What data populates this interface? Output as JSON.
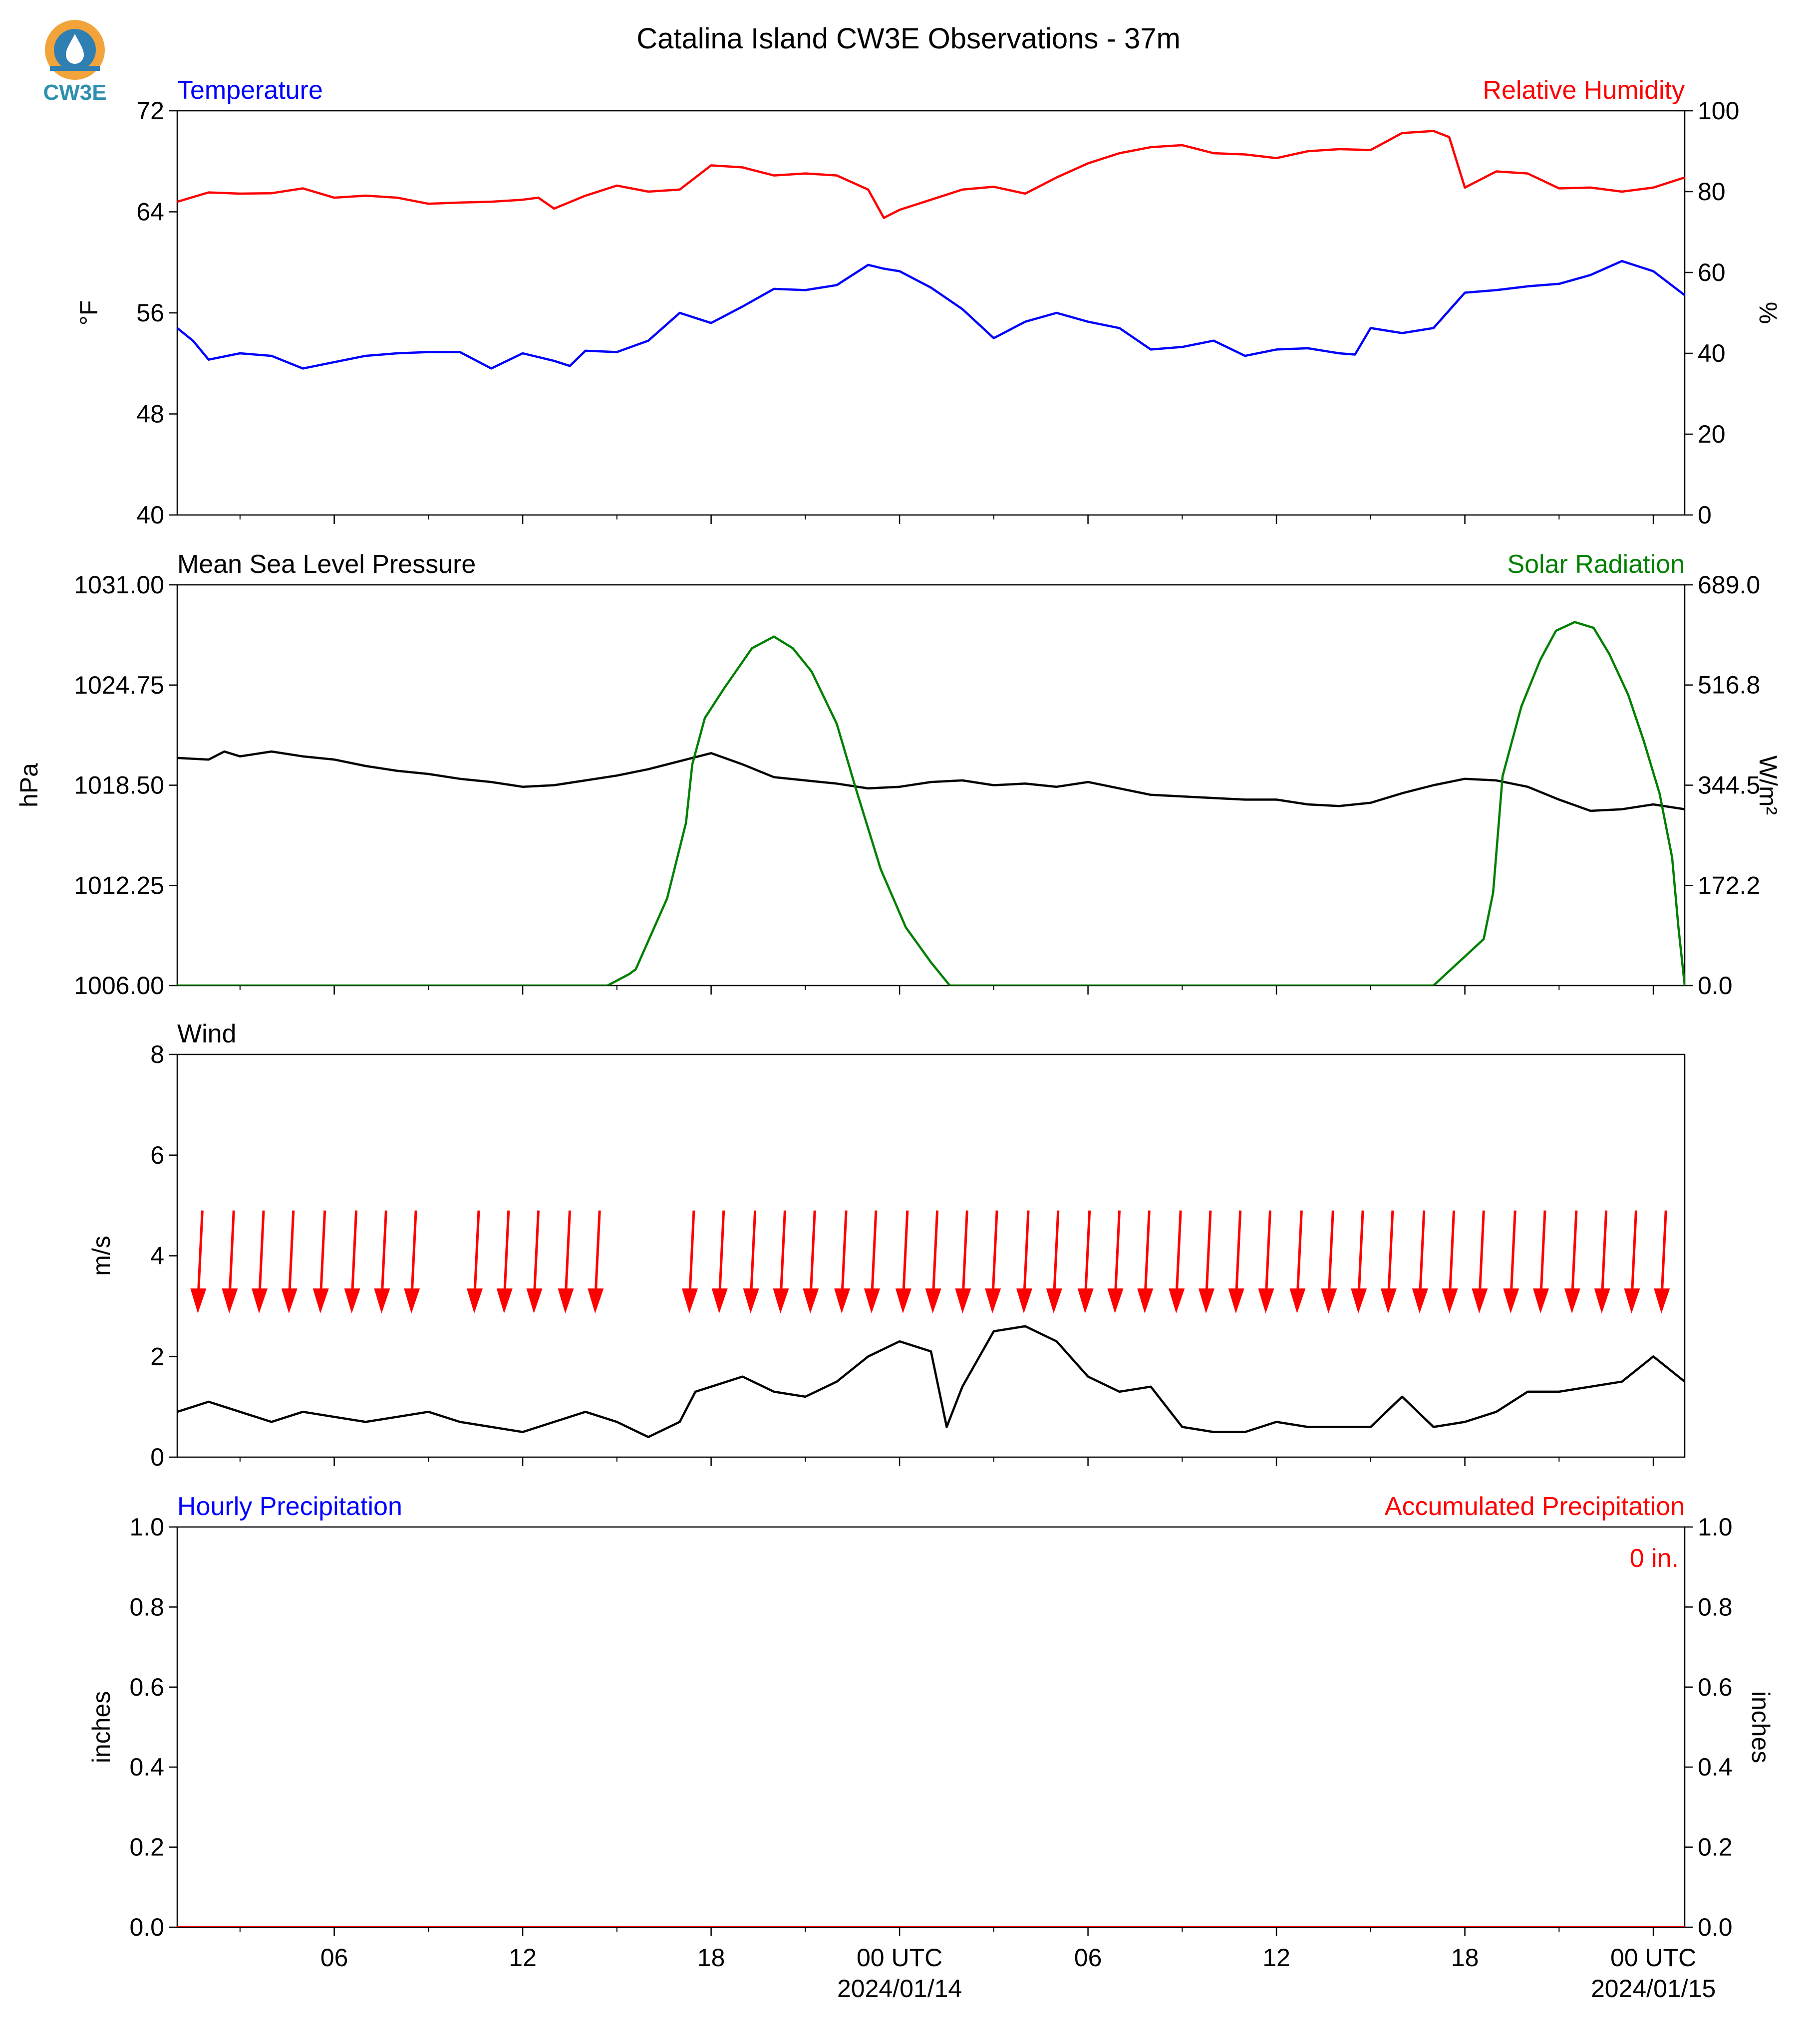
{
  "title": "Catalina Island CW3E Observations - 37m",
  "logo": {
    "text": "CW3E",
    "colors": {
      "outer": "#f2a33a",
      "inner": "#2f7fb2",
      "text": "#2f8fb0"
    }
  },
  "colors": {
    "blue": "#0000ff",
    "red": "#ff0000",
    "green": "#008000",
    "black": "#000000"
  },
  "x_axis": {
    "range_hours": [
      -5.0,
      43.0
    ],
    "ticks": [
      {
        "h": 0,
        "label": "06"
      },
      {
        "h": 6,
        "label": "12"
      },
      {
        "h": 12,
        "label": "18"
      },
      {
        "h": 18,
        "label": "00 UTC",
        "sub": "2024/01/14"
      },
      {
        "h": 24,
        "label": "06"
      },
      {
        "h": 30,
        "label": "12"
      },
      {
        "h": 36,
        "label": "18"
      },
      {
        "h": 42,
        "label": "00 UTC",
        "sub": "2024/01/15"
      }
    ],
    "minor_ticks": [
      -3,
      3,
      9,
      15,
      21,
      27,
      33,
      39
    ]
  },
  "chart_data": [
    {
      "type": "line",
      "panel": "temperature_humidity",
      "left_title": "Temperature",
      "right_title": "Relative Humidity",
      "ylabel_left": "°F",
      "ylabel_right": "%",
      "ylim_left": [
        40,
        72
      ],
      "yticks_left": [
        40,
        48,
        56,
        64,
        72
      ],
      "ylim_right": [
        0,
        100
      ],
      "yticks_right": [
        0,
        20,
        40,
        60,
        80,
        100
      ],
      "series": [
        {
          "axis": "left",
          "color": "#0000ff",
          "x": [
            -5.0,
            -4.5,
            -4.0,
            -3.0,
            -2.0,
            -1.0,
            0.0,
            1.0,
            2.0,
            3.0,
            4.0,
            5.0,
            6.0,
            7.0,
            7.5,
            8.0,
            9.0,
            10.0,
            11.0,
            12.0,
            13.0,
            14.0,
            15.0,
            16.0,
            17.0,
            17.5,
            18.0,
            19.0,
            20.0,
            21.0,
            22.0,
            23.0,
            24.0,
            25.0,
            26.0,
            27.0,
            28.0,
            29.0,
            30.0,
            31.0,
            32.0,
            32.5,
            33.0,
            34.0,
            35.0,
            36.0,
            37.0,
            38.0,
            39.0,
            40.0,
            41.0,
            42.0,
            43.0
          ],
          "y": [
            54.8,
            53.8,
            52.3,
            52.8,
            52.6,
            51.6,
            52.1,
            52.6,
            52.8,
            52.9,
            52.9,
            51.6,
            52.8,
            52.2,
            51.8,
            53.0,
            52.9,
            53.8,
            56.0,
            55.2,
            56.5,
            57.9,
            57.8,
            58.2,
            59.8,
            59.5,
            59.3,
            58.0,
            56.3,
            54.0,
            55.3,
            56.0,
            55.3,
            54.8,
            53.1,
            53.3,
            53.8,
            52.6,
            53.1,
            53.2,
            52.8,
            52.7,
            54.8,
            54.4,
            54.8,
            57.6,
            57.8,
            58.1,
            58.3,
            59.0,
            60.1,
            59.3,
            57.4
          ]
        },
        {
          "axis": "right",
          "color": "#ff0000",
          "x": [
            -5.0,
            -4.0,
            -3.0,
            -2.0,
            -1.0,
            0.0,
            1.0,
            2.0,
            3.0,
            4.0,
            5.0,
            6.0,
            6.5,
            7.0,
            8.0,
            9.0,
            10.0,
            11.0,
            12.0,
            13.0,
            14.0,
            15.0,
            16.0,
            17.0,
            17.5,
            18.0,
            19.0,
            20.0,
            21.0,
            22.0,
            23.0,
            24.0,
            25.0,
            26.0,
            27.0,
            28.0,
            29.0,
            30.0,
            31.0,
            32.0,
            33.0,
            34.0,
            35.0,
            35.5,
            36.0,
            37.0,
            38.0,
            39.0,
            40.0,
            41.0,
            42.0,
            43.0
          ],
          "y": [
            77.5,
            79.8,
            79.5,
            79.6,
            80.8,
            78.5,
            79.0,
            78.5,
            77.0,
            77.3,
            77.5,
            78.0,
            78.5,
            75.8,
            79.0,
            81.5,
            80.0,
            80.5,
            86.5,
            86.0,
            84.0,
            84.5,
            84.0,
            80.5,
            73.5,
            75.5,
            78.0,
            80.5,
            81.2,
            79.5,
            83.5,
            87.0,
            89.5,
            91.0,
            91.5,
            89.5,
            89.2,
            88.3,
            90.0,
            90.5,
            90.3,
            94.5,
            95.0,
            93.5,
            81.0,
            85.0,
            84.5,
            80.8,
            81.0,
            80.0,
            81.0,
            83.5
          ]
        }
      ]
    },
    {
      "type": "line",
      "panel": "pressure_solar",
      "left_title": "Mean Sea Level Pressure",
      "right_title": "Solar Radiation",
      "ylabel_left": "hPa",
      "ylabel_right": "W/m²",
      "ylim_left": [
        1006.0,
        1031.0
      ],
      "yticks_left": [
        "1006.00",
        "1012.25",
        "1018.50",
        "1024.75",
        "1031.00"
      ],
      "ylim_right": [
        0.0,
        689.0
      ],
      "yticks_right": [
        "0.0",
        "172.2",
        "344.5",
        "516.8",
        "689.0"
      ],
      "series": [
        {
          "axis": "left",
          "color": "#000000",
          "x": [
            -5.0,
            -4.0,
            -3.5,
            -3.0,
            -2.0,
            -1.0,
            0.0,
            1.0,
            2.0,
            3.0,
            4.0,
            5.0,
            6.0,
            7.0,
            8.0,
            9.0,
            10.0,
            11.0,
            12.0,
            13.0,
            14.0,
            15.0,
            16.0,
            17.0,
            18.0,
            19.0,
            20.0,
            21.0,
            22.0,
            23.0,
            24.0,
            25.0,
            26.0,
            27.0,
            28.0,
            29.0,
            30.0,
            31.0,
            32.0,
            33.0,
            34.0,
            35.0,
            36.0,
            37.0,
            38.0,
            39.0,
            40.0,
            41.0,
            42.0,
            43.0
          ],
          "y": [
            1020.2,
            1020.1,
            1020.6,
            1020.3,
            1020.6,
            1020.3,
            1020.1,
            1019.7,
            1019.4,
            1019.2,
            1018.9,
            1018.7,
            1018.4,
            1018.5,
            1018.8,
            1019.1,
            1019.5,
            1020.0,
            1020.5,
            1019.8,
            1019.0,
            1018.8,
            1018.6,
            1018.3,
            1018.4,
            1018.7,
            1018.8,
            1018.5,
            1018.6,
            1018.4,
            1018.7,
            1018.3,
            1017.9,
            1017.8,
            1017.7,
            1017.6,
            1017.6,
            1017.3,
            1017.2,
            1017.4,
            1018.0,
            1018.5,
            1018.9,
            1018.8,
            1018.4,
            1017.6,
            1016.9,
            1017.0,
            1017.3,
            1017.0
          ]
        },
        {
          "axis": "right",
          "color": "#008000",
          "x": [
            -5.0,
            8.7,
            9.4,
            9.6,
            10.6,
            11.2,
            11.4,
            11.8,
            12.4,
            13.3,
            14.0,
            14.6,
            15.2,
            16.0,
            16.6,
            17.0,
            17.4,
            18.2,
            19.0,
            19.6,
            20.0,
            20.5,
            35.0,
            35.6,
            36.2,
            36.6,
            36.9,
            37.2,
            37.8,
            38.4,
            38.9,
            39.5,
            40.1,
            40.6,
            41.2,
            41.7,
            42.2,
            42.6,
            42.8,
            43.0
          ],
          "y": [
            0,
            0,
            20,
            28,
            150,
            280,
            380,
            460,
            510,
            580,
            600,
            580,
            540,
            450,
            340,
            270,
            200,
            100,
            40,
            0,
            0,
            0,
            0,
            30,
            60,
            80,
            160,
            360,
            480,
            560,
            610,
            625,
            615,
            570,
            500,
            420,
            330,
            220,
            100,
            0
          ]
        }
      ]
    },
    {
      "type": "line",
      "panel": "wind",
      "left_title": "Wind",
      "ylabel": "m/s",
      "ylim": [
        0,
        8
      ],
      "yticks": [
        0,
        2,
        4,
        6,
        8
      ],
      "series": [
        {
          "color": "#000000",
          "x": [
            -5.0,
            -4.0,
            -3.0,
            -2.0,
            -1.0,
            0.0,
            1.0,
            2.0,
            3.0,
            4.0,
            5.0,
            6.0,
            7.0,
            8.0,
            9.0,
            10.0,
            11.0,
            11.5,
            12.0,
            13.0,
            14.0,
            15.0,
            16.0,
            17.0,
            18.0,
            19.0,
            19.5,
            20.0,
            21.0,
            22.0,
            23.0,
            24.0,
            25.0,
            26.0,
            27.0,
            28.0,
            29.0,
            30.0,
            31.0,
            32.0,
            33.0,
            34.0,
            35.0,
            36.0,
            37.0,
            38.0,
            39.0,
            40.0,
            41.0,
            42.0,
            43.0
          ],
          "y": [
            0.9,
            1.1,
            0.9,
            0.7,
            0.9,
            0.8,
            0.7,
            0.8,
            0.9,
            0.7,
            0.6,
            0.5,
            0.7,
            0.9,
            0.7,
            0.4,
            0.7,
            1.3,
            1.4,
            1.6,
            1.3,
            1.2,
            1.5,
            2.0,
            2.3,
            2.1,
            0.6,
            1.4,
            2.5,
            2.6,
            2.3,
            1.6,
            1.3,
            1.4,
            0.6,
            0.5,
            0.5,
            0.7,
            0.6,
            0.6,
            0.6,
            1.2,
            0.6,
            0.7,
            0.9,
            1.3,
            1.3,
            1.4,
            1.5,
            2.0,
            1.5
          ]
        }
      ],
      "wind_arrows": {
        "color": "#ff0000",
        "note_text_none": true,
        "x": [
          -4.2,
          -3.2,
          -2.25,
          -1.3,
          -0.3,
          0.7,
          1.65,
          2.6,
          4.6,
          5.55,
          6.5,
          7.5,
          8.45,
          11.45,
          12.4,
          13.4,
          14.35,
          15.3,
          16.3,
          17.25,
          18.25,
          19.2,
          20.15,
          21.1,
          22.1,
          23.05,
          24.05,
          25.0,
          25.95,
          26.95,
          27.9,
          28.85,
          29.8,
          30.8,
          31.8,
          32.75,
          33.7,
          34.7,
          35.65,
          36.6,
          37.6,
          38.55,
          39.55,
          40.5,
          41.45,
          42.4
        ],
        "speed": 3.4
      }
    },
    {
      "type": "line",
      "panel": "precipitation",
      "left_title": "Hourly Precipitation",
      "right_title": "Accumulated Precipitation",
      "ylabel_left": "inches",
      "ylabel_right": "inches",
      "ylim": [
        0.0,
        1.0
      ],
      "yticks": [
        "0.0",
        "0.2",
        "0.4",
        "0.6",
        "0.8",
        "1.0"
      ],
      "accumulated_label": "0 in.",
      "series": [
        {
          "axis": "left",
          "color": "#0000ff",
          "x": [
            -5.0,
            43.0
          ],
          "y": [
            0,
            0
          ]
        },
        {
          "axis": "right",
          "color": "#ff0000",
          "x": [
            -5.0,
            43.0
          ],
          "y": [
            0,
            0
          ]
        }
      ]
    }
  ]
}
